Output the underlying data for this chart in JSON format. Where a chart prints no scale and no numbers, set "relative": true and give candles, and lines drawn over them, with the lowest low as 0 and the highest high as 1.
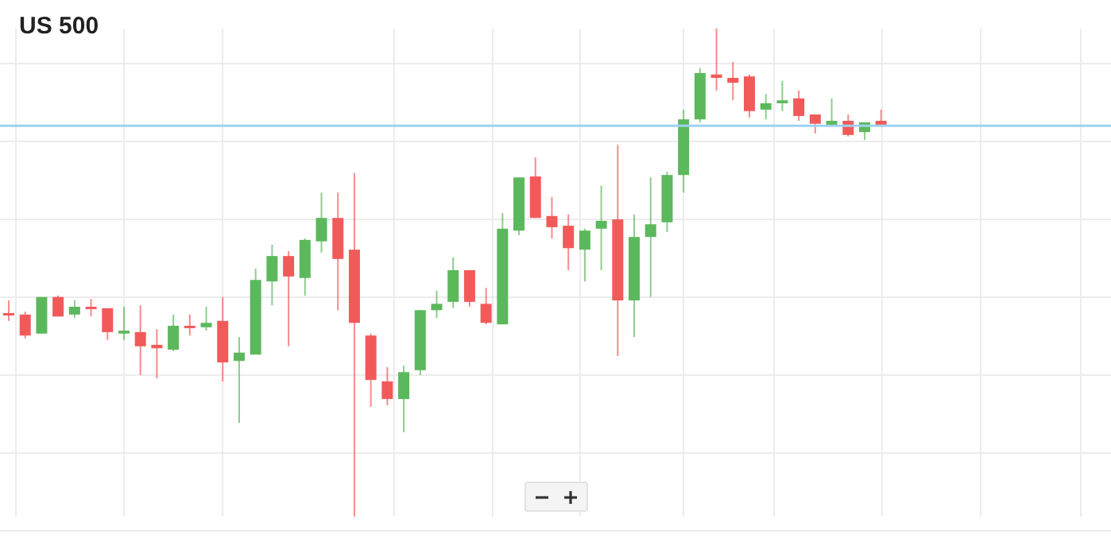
{
  "chart_data": {
    "type": "candlestick",
    "title": "US 500",
    "relative": true,
    "grid": true,
    "categories": [
      null,
      null,
      null,
      null,
      null,
      null,
      null,
      null,
      null,
      null,
      null,
      null,
      null,
      null,
      null,
      null,
      null,
      null,
      null,
      null,
      null,
      null,
      null,
      null,
      null,
      null,
      null,
      null,
      null,
      null,
      null,
      null,
      null,
      null,
      null,
      null,
      null,
      null,
      null,
      null,
      null,
      null,
      null,
      null,
      null,
      null,
      null,
      null,
      null,
      null,
      null,
      null,
      null,
      null
    ],
    "series": [
      {
        "colors": [
          "#f25a5a",
          "#f25a5a",
          "#5cb85c",
          "#f25a5a",
          "#5cb85c",
          "#f25a5a",
          "#f25a5a",
          "#5cb85c",
          "#f25a5a",
          "#f25a5a",
          "#5cb85c",
          "#f25a5a",
          "#5cb85c",
          "#f25a5a",
          "#5cb85c",
          "#5cb85c",
          "#5cb85c",
          "#f25a5a",
          "#5cb85c",
          "#5cb85c",
          "#f25a5a",
          "#f25a5a",
          "#f25a5a",
          "#f25a5a",
          "#5cb85c",
          "#5cb85c",
          "#5cb85c",
          "#5cb85c",
          "#f25a5a",
          "#f25a5a",
          "#5cb85c",
          "#5cb85c",
          "#f25a5a",
          "#f25a5a",
          "#f25a5a",
          "#5cb85c",
          "#5cb85c",
          "#f25a5a",
          "#5cb85c",
          "#5cb85c",
          "#5cb85c",
          "#5cb85c",
          "#5cb85c",
          "#f25a5a",
          "#f25a5a",
          "#f25a5a",
          "#5cb85c",
          "#5cb85c",
          "#f25a5a",
          "#f25a5a",
          "#5cb85c",
          "#f25a5a",
          "#5cb85c",
          "#f25a5a"
        ],
        "ohlc": [
          [
            0.417,
            0.443,
            0.401,
            0.417
          ],
          [
            0.414,
            0.42,
            0.365,
            0.371
          ],
          [
            0.375,
            0.45,
            0.375,
            0.45
          ],
          [
            0.45,
            0.453,
            0.41,
            0.41
          ],
          [
            0.414,
            0.443,
            0.407,
            0.43
          ],
          [
            0.43,
            0.446,
            0.41,
            0.427
          ],
          [
            0.427,
            0.427,
            0.362,
            0.378
          ],
          [
            0.375,
            0.43,
            0.362,
            0.381
          ],
          [
            0.378,
            0.433,
            0.29,
            0.349
          ],
          [
            0.352,
            0.384,
            0.283,
            0.345
          ],
          [
            0.342,
            0.414,
            0.339,
            0.391
          ],
          [
            0.391,
            0.414,
            0.371,
            0.388
          ],
          [
            0.388,
            0.43,
            0.381,
            0.397
          ],
          [
            0.401,
            0.45,
            0.277,
            0.316
          ],
          [
            0.319,
            0.368,
            0.192,
            0.336
          ],
          [
            0.332,
            0.508,
            0.332,
            0.485
          ],
          [
            0.482,
            0.557,
            0.433,
            0.534
          ],
          [
            0.534,
            0.544,
            0.349,
            0.492
          ],
          [
            0.489,
            0.57,
            0.453,
            0.567
          ],
          [
            0.564,
            0.664,
            0.541,
            0.612
          ],
          [
            0.612,
            0.664,
            0.423,
            0.528
          ],
          [
            0.547,
            0.704,
            0,
            0.397
          ],
          [
            0.371,
            0.375,
            0.225,
            0.28
          ],
          [
            0.277,
            0.306,
            0.228,
            0.241
          ],
          [
            0.241,
            0.309,
            0.173,
            0.296
          ],
          [
            0.3,
            0.423,
            0.29,
            0.423
          ],
          [
            0.423,
            0.463,
            0.407,
            0.436
          ],
          [
            0.44,
            0.531,
            0.427,
            0.505
          ],
          [
            0.505,
            0.505,
            0.43,
            0.44
          ],
          [
            0.436,
            0.469,
            0.394,
            0.397
          ],
          [
            0.394,
            0.622,
            0.394,
            0.59
          ],
          [
            0.586,
            0.695,
            0.577,
            0.695
          ],
          [
            0.697,
            0.736,
            0.612,
            0.612
          ],
          [
            0.616,
            0.655,
            0.57,
            0.593
          ],
          [
            0.596,
            0.619,
            0.505,
            0.55
          ],
          [
            0.547,
            0.59,
            0.482,
            0.586
          ],
          [
            0.59,
            0.678,
            0.505,
            0.606
          ],
          [
            0.609,
            0.762,
            0.329,
            0.443
          ],
          [
            0.443,
            0.619,
            0.368,
            0.573
          ],
          [
            0.573,
            0.695,
            0.45,
            0.599
          ],
          [
            0.603,
            0.707,
            0.583,
            0.7
          ],
          [
            0.7,
            0.834,
            0.664,
            0.814
          ],
          [
            0.814,
            0.919,
            0.808,
            0.909
          ],
          [
            0.906,
            1,
            0.873,
            0.899
          ],
          [
            0.899,
            0.932,
            0.853,
            0.889
          ],
          [
            0.902,
            0.906,
            0.818,
            0.831
          ],
          [
            0.834,
            0.866,
            0.814,
            0.847
          ],
          [
            0.847,
            0.893,
            0.831,
            0.853
          ],
          [
            0.857,
            0.873,
            0.811,
            0.821
          ],
          [
            0.824,
            0.824,
            0.785,
            0.805
          ],
          [
            0.801,
            0.857,
            0.801,
            0.811
          ],
          [
            0.811,
            0.824,
            0.779,
            0.782
          ],
          [
            0.788,
            0.808,
            0.772,
            0.808
          ],
          [
            0.811,
            0.834,
            0.798,
            0.801
          ]
        ]
      }
    ],
    "ref_lines": [
      {
        "axis": "y",
        "value": 0.801,
        "color": "#9ed2ee"
      }
    ]
  }
}
